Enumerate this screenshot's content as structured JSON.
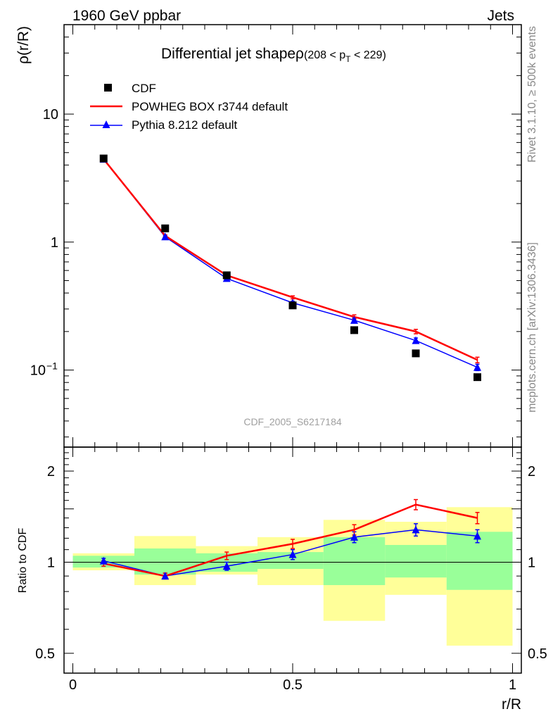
{
  "header": {
    "left": "1960 GeV ppbar",
    "right": "Jets"
  },
  "side_labels": {
    "top": "Rivet 3.1.10, ≥ 500k events",
    "bottom": "mcplots.cern.ch [arXiv:1306.3436]"
  },
  "watermark": "CDF_2005_S6217184",
  "colors": {
    "cdf": "#000000",
    "powheg": "#ff0000",
    "pythia": "#0000ff",
    "band_inner": "#99ff99",
    "band_outer": "#ffff99"
  },
  "chart_data": [
    {
      "type": "scatter",
      "panel": "main",
      "title_main": "Differential jet shapeρ",
      "title_cut": {
        "prefix": "(208 < p",
        "sub": "T",
        "suffix": " < 229)"
      },
      "ylabel": "ρ(r/R)",
      "yscale": "log",
      "ylim": [
        0.025,
        50
      ],
      "xlim": [
        -0.02,
        1.02
      ],
      "y_ticks": [
        {
          "value": 10,
          "label": "10"
        },
        {
          "value": 1,
          "label": "1"
        },
        {
          "value": 0.1,
          "label_base": "10",
          "label_exp": "−1"
        }
      ],
      "x": [
        0.07,
        0.21,
        0.35,
        0.5,
        0.64,
        0.78,
        0.92
      ],
      "series": [
        {
          "name": "CDF",
          "style": "square-markers",
          "values": [
            4.5,
            1.28,
            0.55,
            0.32,
            0.205,
            0.135,
            0.088
          ]
        },
        {
          "name": "POWHEG BOX r3744 default",
          "style": "line",
          "values": [
            4.45,
            1.12,
            0.55,
            0.37,
            0.26,
            0.2,
            0.12
          ],
          "errors": [
            0.05,
            0.02,
            0.012,
            0.01,
            0.01,
            0.008,
            0.006
          ]
        },
        {
          "name": "Pythia 8.212 default",
          "style": "line-triangles",
          "values": [
            4.45,
            1.1,
            0.52,
            0.335,
            0.245,
            0.17,
            0.105
          ],
          "errors": [
            0.05,
            0.02,
            0.012,
            0.01,
            0.01,
            0.008,
            0.006
          ]
        }
      ],
      "legend_position": "top-left"
    },
    {
      "type": "line",
      "panel": "ratio",
      "ylabel": "Ratio to CDF",
      "yscale": "log",
      "ylim": [
        0.43,
        2.4
      ],
      "xlim": [
        -0.02,
        1.02
      ],
      "xlabel": "r/R",
      "x_ticks": [
        {
          "value": 0,
          "label": "0"
        },
        {
          "value": 0.5,
          "label": "0.5"
        },
        {
          "value": 1,
          "label": "1"
        }
      ],
      "y_ticks": [
        {
          "value": 2,
          "label": "2"
        },
        {
          "value": 1,
          "label": "1"
        },
        {
          "value": 0.5,
          "label": "0.5"
        }
      ],
      "bin_edges": [
        0,
        0.14,
        0.28,
        0.42,
        0.57,
        0.71,
        0.85,
        1.0
      ],
      "band_inner": [
        [
          0.96,
          1.05
        ],
        [
          0.91,
          1.11
        ],
        [
          0.93,
          1.07
        ],
        [
          0.95,
          1.08
        ],
        [
          0.84,
          1.21
        ],
        [
          0.89,
          1.14
        ],
        [
          0.81,
          1.26
        ]
      ],
      "band_outer": [
        [
          0.94,
          1.07
        ],
        [
          0.84,
          1.22
        ],
        [
          0.91,
          1.13
        ],
        [
          0.84,
          1.21
        ],
        [
          0.64,
          1.38
        ],
        [
          0.78,
          1.36
        ],
        [
          0.53,
          1.52
        ]
      ],
      "x": [
        0.07,
        0.21,
        0.35,
        0.5,
        0.64,
        0.78,
        0.92
      ],
      "series": [
        {
          "name": "POWHEG BOX r3744 default",
          "values": [
            0.99,
            0.9,
            1.05,
            1.15,
            1.28,
            1.55,
            1.4
          ],
          "errors": [
            0.02,
            0.02,
            0.03,
            0.04,
            0.05,
            0.06,
            0.06
          ]
        },
        {
          "name": "Pythia 8.212 default",
          "values": [
            1.01,
            0.9,
            0.97,
            1.06,
            1.21,
            1.28,
            1.22
          ],
          "errors": [
            0.02,
            0.02,
            0.03,
            0.04,
            0.05,
            0.06,
            0.06
          ]
        }
      ],
      "reference": 1
    }
  ]
}
